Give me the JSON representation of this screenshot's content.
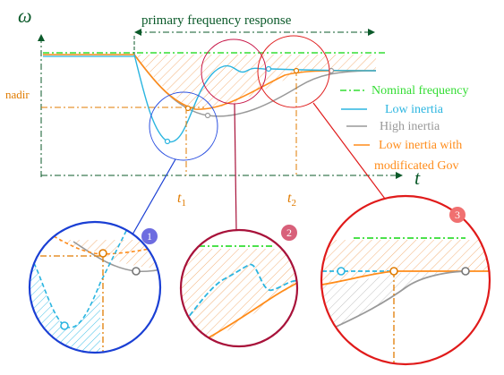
{
  "axes": {
    "y_symbol": "ω",
    "x_symbol": "t",
    "t1": "t",
    "t1_sub": "1",
    "t2": "t",
    "t2_sub": "2",
    "nadir": "nadir"
  },
  "header": {
    "pfr_label": "primary frequency response"
  },
  "legend": {
    "items": [
      {
        "label": "Nominal frequency",
        "color": "#33dd33",
        "style": "dash-dot"
      },
      {
        "label": "Low inertia",
        "color": "#2bb5e0",
        "style": "solid"
      },
      {
        "label": "High inertia",
        "color": "#999999",
        "style": "solid"
      },
      {
        "label": "Low inertia with",
        "color": "#ff8c1a",
        "style": "solid"
      },
      {
        "label": "modificated Gov",
        "color": "#ff8c1a",
        "style": "none"
      }
    ]
  },
  "zooms": [
    {
      "number": "1",
      "ring_color": "#1a3fd4",
      "badge_color": "#6d6ce0"
    },
    {
      "number": "2",
      "ring_color": "#a8123a",
      "badge_color": "#d8607a"
    },
    {
      "number": "3",
      "ring_color": "#e01a1a",
      "badge_color": "#f07070"
    }
  ],
  "colors": {
    "nominal": "#33dd33",
    "low_inertia": "#2bb5e0",
    "high_inertia": "#999999",
    "modified_gov": "#ff8c1a",
    "axis": "#0b5a2a",
    "marker": "#e07b00"
  }
}
